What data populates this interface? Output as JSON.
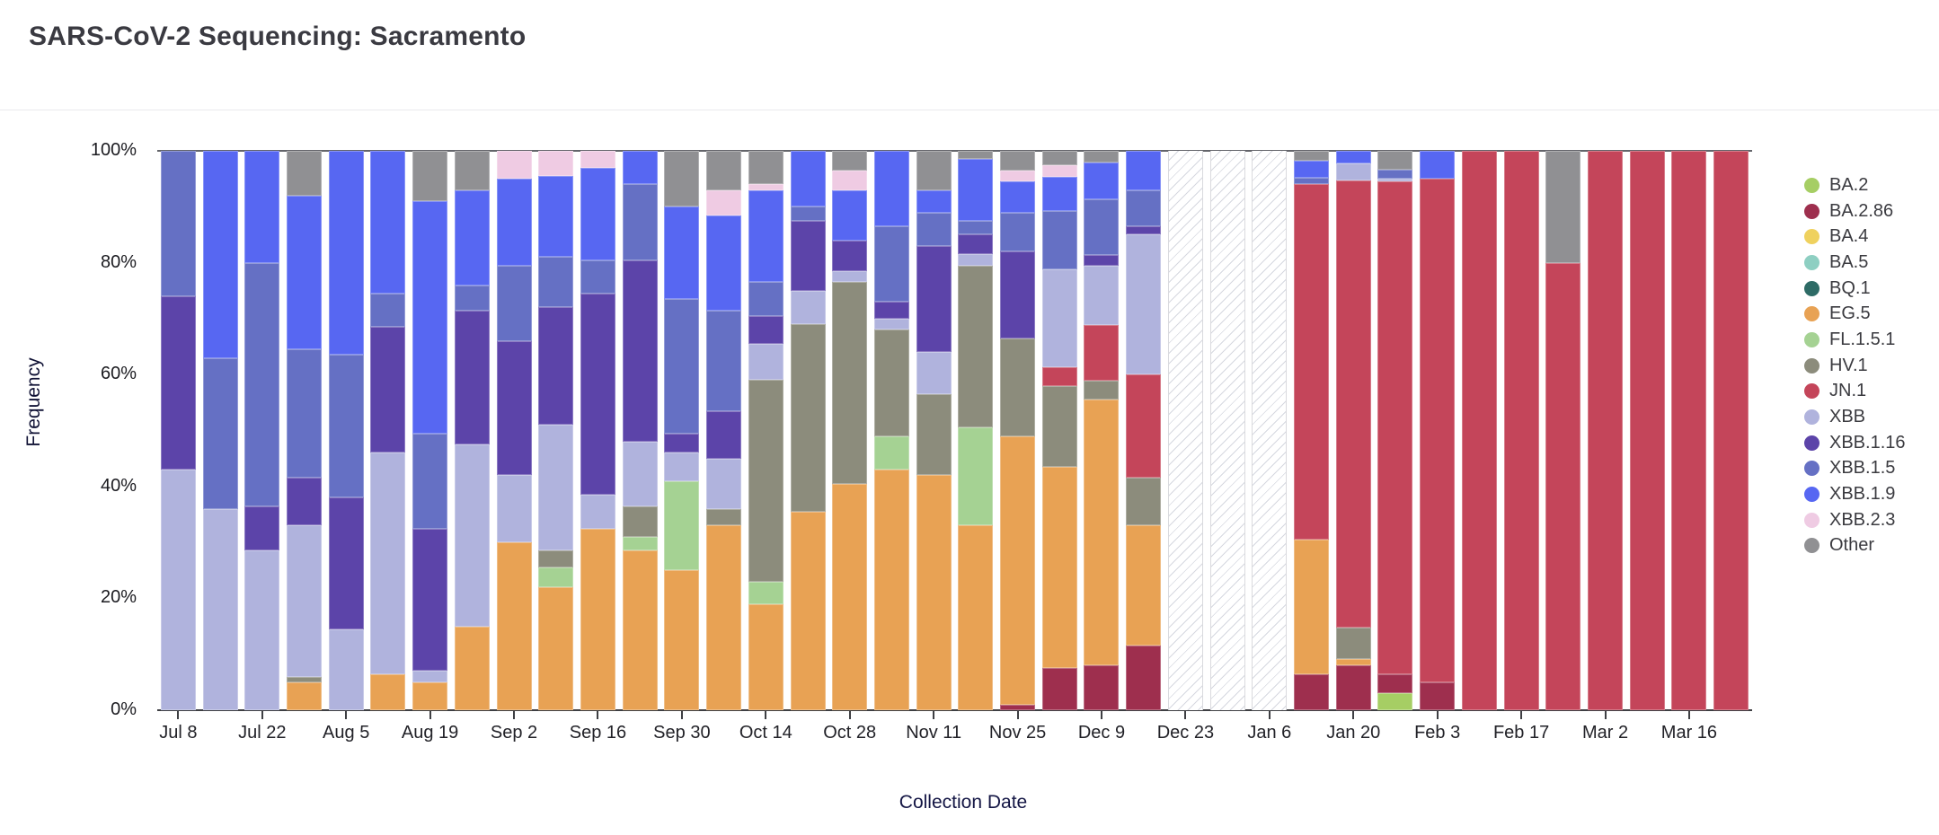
{
  "title": "SARS-CoV-2 Sequencing: Sacramento",
  "y_axis": {
    "label": "Frequency",
    "ticks": [
      "100%",
      "80%",
      "60%",
      "40%",
      "20%",
      "0%"
    ]
  },
  "x_axis": {
    "label": "Collection Date",
    "visible_tick_labels": [
      "Jul 8",
      "Jul 22",
      "Aug 5",
      "Aug 19",
      "Sep 2",
      "Sep 16",
      "Sep 30",
      "Oct 14",
      "Oct 28",
      "Nov 11",
      "Nov 25",
      "Dec 9",
      "Dec 23",
      "Jan 6",
      "Jan 20",
      "Feb 3",
      "Feb 17",
      "Mar 2",
      "Mar 16"
    ]
  },
  "legend": {
    "items": [
      {
        "label": "BA.2",
        "color": "#a6ce64"
      },
      {
        "label": "BA.2.86",
        "color": "#9e2f4e"
      },
      {
        "label": "BA.4",
        "color": "#efd15e"
      },
      {
        "label": "BA.5",
        "color": "#8ecfc2"
      },
      {
        "label": "BQ.1",
        "color": "#2e6b66"
      },
      {
        "label": "EG.5",
        "color": "#e8a254"
      },
      {
        "label": "FL.1.5.1",
        "color": "#a5d293"
      },
      {
        "label": "HV.1",
        "color": "#8c8c7c"
      },
      {
        "label": "JN.1",
        "color": "#c4455a"
      },
      {
        "label": "XBB",
        "color": "#b0b3dd"
      },
      {
        "label": "XBB.1.16",
        "color": "#5c44a9"
      },
      {
        "label": "XBB.1.5",
        "color": "#6570c4"
      },
      {
        "label": "XBB.1.9",
        "color": "#5767f2"
      },
      {
        "label": "XBB.2.3",
        "color": "#efcbe3"
      },
      {
        "label": "Other",
        "color": "#909093"
      }
    ]
  },
  "chart_data": {
    "type": "bar",
    "stacked": true,
    "title": "SARS-CoV-2 Sequencing: Sacramento",
    "xlabel": "Collection Date",
    "ylabel": "Frequency",
    "ylim": [
      0,
      1
    ],
    "grid": false,
    "legend_position": "right",
    "tick_every": 2,
    "x": [
      "Jul 8",
      "Jul 15",
      "Jul 22",
      "Jul 29",
      "Aug 5",
      "Aug 12",
      "Aug 19",
      "Aug 26",
      "Sep 2",
      "Sep 9",
      "Sep 16",
      "Sep 23",
      "Sep 30",
      "Oct 7",
      "Oct 14",
      "Oct 21",
      "Oct 28",
      "Nov 4",
      "Nov 11",
      "Nov 18",
      "Nov 25",
      "Dec 2",
      "Dec 9",
      "Dec 16",
      "Dec 23",
      "Dec 30",
      "Jan 6",
      "Jan 13",
      "Jan 20",
      "Jan 27",
      "Feb 3",
      "Feb 10",
      "Feb 17",
      "Feb 24",
      "Mar 2",
      "Mar 9",
      "Mar 16",
      "Mar 23"
    ],
    "missing_weeks": [
      "Dec 23",
      "Dec 30",
      "Jan 6"
    ],
    "series": [
      {
        "name": "BA.2",
        "color": "#a6ce64",
        "values": [
          0,
          0,
          0,
          0,
          0,
          0,
          0,
          0,
          0,
          0,
          0,
          0,
          0,
          0,
          0,
          0,
          0,
          0,
          0,
          0,
          0,
          0,
          0,
          0,
          null,
          null,
          null,
          0,
          0,
          0.03,
          0,
          0,
          0,
          0,
          0,
          0,
          0,
          0
        ]
      },
      {
        "name": "BA.2.86",
        "color": "#9e2f4e",
        "values": [
          0,
          0,
          0,
          0,
          0,
          0,
          0,
          0,
          0,
          0,
          0,
          0,
          0,
          0,
          0,
          0,
          0,
          0,
          0,
          0,
          0.01,
          0.075,
          0.08,
          0.115,
          null,
          null,
          null,
          0.065,
          0.08,
          0.035,
          0.05,
          0,
          0,
          0,
          0,
          0,
          0,
          0
        ]
      },
      {
        "name": "BA.4",
        "color": "#efd15e",
        "values": [
          0,
          0,
          0,
          0,
          0,
          0,
          0,
          0,
          0,
          0,
          0,
          0,
          0,
          0,
          0,
          0,
          0,
          0,
          0,
          0,
          0,
          0,
          0,
          0,
          null,
          null,
          null,
          0,
          0,
          0,
          0,
          0,
          0,
          0,
          0,
          0,
          0,
          0
        ]
      },
      {
        "name": "BA.5",
        "color": "#8ecfc2",
        "values": [
          0,
          0,
          0,
          0,
          0,
          0,
          0,
          0,
          0,
          0,
          0,
          0,
          0,
          0,
          0,
          0,
          0,
          0,
          0,
          0,
          0,
          0,
          0,
          0,
          null,
          null,
          null,
          0,
          0,
          0,
          0,
          0,
          0,
          0,
          0,
          0,
          0,
          0
        ]
      },
      {
        "name": "BQ.1",
        "color": "#2e6b66",
        "values": [
          0,
          0,
          0,
          0,
          0,
          0,
          0,
          0,
          0,
          0,
          0,
          0,
          0,
          0,
          0,
          0,
          0,
          0,
          0,
          0,
          0,
          0,
          0,
          0,
          null,
          null,
          null,
          0,
          0,
          0,
          0,
          0,
          0,
          0,
          0,
          0,
          0,
          0
        ]
      },
      {
        "name": "EG.5",
        "color": "#e8a254",
        "values": [
          0,
          0,
          0,
          0.05,
          0,
          0.065,
          0.05,
          0.15,
          0.3,
          0.22,
          0.325,
          0.285,
          0.25,
          0.33,
          0.19,
          0.355,
          0.405,
          0.43,
          0.42,
          0.33,
          0.48,
          0.36,
          0.475,
          0.215,
          null,
          null,
          null,
          0.24,
          0.012,
          0,
          0,
          0,
          0,
          0,
          0,
          0,
          0,
          0
        ]
      },
      {
        "name": "FL.1.5.1",
        "color": "#a5d293",
        "values": [
          0,
          0,
          0,
          0,
          0,
          0,
          0,
          0,
          0,
          0.035,
          0,
          0.025,
          0.16,
          0,
          0.04,
          0,
          0,
          0.06,
          0,
          0.175,
          0,
          0,
          0,
          0,
          null,
          null,
          null,
          0,
          0,
          0,
          0,
          0,
          0,
          0,
          0,
          0,
          0,
          0
        ]
      },
      {
        "name": "HV.1",
        "color": "#8c8c7c",
        "values": [
          0,
          0,
          0,
          0.01,
          0,
          0,
          0,
          0,
          0,
          0.03,
          0,
          0.055,
          0,
          0.03,
          0.36,
          0.335,
          0.36,
          0.19,
          0.145,
          0.29,
          0.175,
          0.145,
          0.034,
          0.085,
          null,
          null,
          null,
          0,
          0.055,
          0,
          0,
          0,
          0,
          0,
          0,
          0,
          0,
          0
        ]
      },
      {
        "name": "JN.1",
        "color": "#c4455a",
        "values": [
          0,
          0,
          0,
          0,
          0,
          0,
          0,
          0,
          0,
          0,
          0,
          0,
          0,
          0,
          0,
          0,
          0,
          0,
          0,
          0,
          0,
          0.033,
          0.1,
          0.185,
          null,
          null,
          null,
          0.635,
          0.8,
          0.88,
          0.9,
          1,
          1,
          0.8,
          1,
          1,
          1,
          1
        ]
      },
      {
        "name": "XBB",
        "color": "#b0b3dd",
        "values": [
          0.43,
          0.36,
          0.285,
          0.27,
          0.145,
          0.395,
          0.02,
          0.325,
          0.12,
          0.225,
          0.06,
          0.115,
          0.05,
          0.09,
          0.065,
          0.06,
          0.02,
          0.02,
          0.075,
          0.02,
          0,
          0.175,
          0.105,
          0.25,
          null,
          null,
          null,
          0,
          0.03,
          0.005,
          0,
          0,
          0,
          0,
          0,
          0,
          0,
          0
        ]
      },
      {
        "name": "XBB.1.16",
        "color": "#5c44a9",
        "values": [
          0.31,
          0,
          0.08,
          0.085,
          0.235,
          0.225,
          0.255,
          0.24,
          0.24,
          0.21,
          0.36,
          0.325,
          0.035,
          0.085,
          0.05,
          0.125,
          0.055,
          0.03,
          0.19,
          0.035,
          0.155,
          0,
          0.02,
          0.015,
          null,
          null,
          null,
          0,
          0,
          0,
          0,
          0,
          0,
          0,
          0,
          0,
          0,
          0
        ]
      },
      {
        "name": "XBB.1.5",
        "color": "#6570c4",
        "values": [
          0.26,
          0.27,
          0.435,
          0.23,
          0.255,
          0.06,
          0.17,
          0.045,
          0.135,
          0.09,
          0.06,
          0.135,
          0.24,
          0.18,
          0.06,
          0.025,
          0,
          0.135,
          0.06,
          0.025,
          0.07,
          0.105,
          0.1,
          0.065,
          null,
          null,
          null,
          0.012,
          0,
          0.017,
          0,
          0,
          0,
          0,
          0,
          0,
          0,
          0
        ]
      },
      {
        "name": "XBB.1.9",
        "color": "#5767f2",
        "values": [
          0,
          0.37,
          0.2,
          0.275,
          0.365,
          0.255,
          0.415,
          0.17,
          0.155,
          0.145,
          0.165,
          0.06,
          0.165,
          0.17,
          0.165,
          0.1,
          0.09,
          0.135,
          0.04,
          0.11,
          0.055,
          0.06,
          0.065,
          0.07,
          null,
          null,
          null,
          0.03,
          0.023,
          0,
          0.05,
          0,
          0,
          0,
          0,
          0,
          0,
          0
        ]
      },
      {
        "name": "XBB.2.3",
        "color": "#efcbe3",
        "values": [
          0,
          0,
          0,
          0,
          0,
          0,
          0,
          0,
          0.05,
          0.045,
          0.03,
          0,
          0,
          0.045,
          0.01,
          0,
          0.035,
          0,
          0,
          0,
          0.02,
          0.022,
          0,
          0,
          null,
          null,
          null,
          0,
          0,
          0,
          0,
          0,
          0,
          0,
          0,
          0,
          0,
          0
        ]
      },
      {
        "name": "Other",
        "color": "#909093",
        "values": [
          0,
          0,
          0,
          0.08,
          0,
          0,
          0.09,
          0.07,
          0,
          0,
          0,
          0,
          0.1,
          0.07,
          0.06,
          0,
          0.035,
          0,
          0.07,
          0.015,
          0.035,
          0.025,
          0.021,
          0,
          null,
          null,
          null,
          0.018,
          0,
          0.033,
          0,
          0,
          0,
          0.2,
          0,
          0,
          0,
          0
        ]
      }
    ]
  }
}
